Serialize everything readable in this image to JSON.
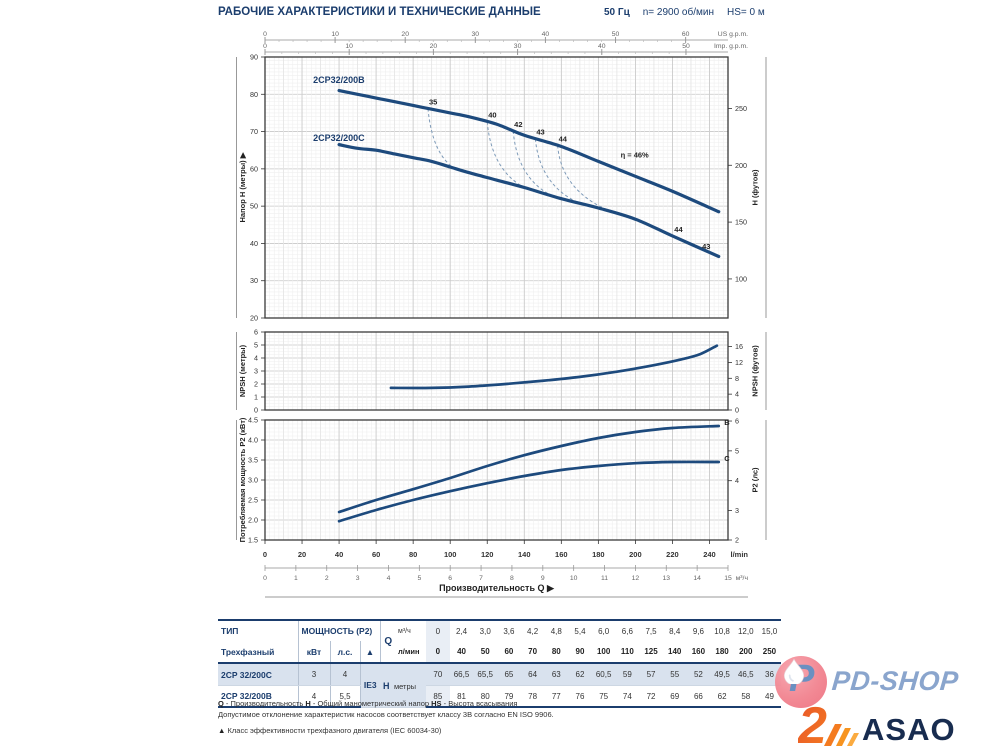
{
  "header": {
    "title": "РАБОЧИЕ ХАРАКТЕРИСТИКИ И ТЕХНИЧЕСКИЕ ДАННЫЕ",
    "frequency": "50 Гц",
    "speed": "n= 2900 об/мин",
    "suction": "HS= 0 м"
  },
  "colors": {
    "navy": "#1b3d6d",
    "curve": "#1d4a7d",
    "grid_minor": "#efefef",
    "grid_mid": "#e2e2e2",
    "grid_major": "#c9c9c9",
    "row_shade": "#d9e2ee"
  },
  "x_axis": {
    "q_max": 250,
    "lmin_ticks": [
      0,
      20,
      40,
      60,
      80,
      100,
      120,
      140,
      160,
      180,
      200,
      220,
      240
    ],
    "lmin_unit": "l/min",
    "m3h_ticks": [
      0,
      1,
      2,
      3,
      4,
      5,
      6,
      7,
      8,
      9,
      10,
      11,
      12,
      13,
      14,
      15
    ],
    "m3h_unit": "м³/ч",
    "us_ticks": [
      0,
      10,
      20,
      30,
      40,
      50,
      60
    ],
    "us_unit": "US g.p.m.",
    "imp_ticks": [
      0,
      10,
      20,
      30,
      40,
      50
    ],
    "imp_unit": "Imp. g.p.m.",
    "q_axis_label": "Производительность Q ▶"
  },
  "chart_data": [
    {
      "id": "head",
      "type": "line",
      "ylabel": "Напор H (метры) ▶",
      "ylabel_right": "H (футов)",
      "ylim": [
        20,
        90
      ],
      "yticks": [
        20,
        30,
        40,
        50,
        60,
        70,
        80,
        90
      ],
      "right_ticks_ft": [
        100,
        150,
        200,
        250
      ],
      "series": [
        {
          "name": "2CP32/200B",
          "points": [
            [
              40,
              81
            ],
            [
              50,
              80
            ],
            [
              60,
              79
            ],
            [
              70,
              78
            ],
            [
              80,
              77
            ],
            [
              90,
              76
            ],
            [
              100,
              75
            ],
            [
              110,
              74
            ],
            [
              125,
              72
            ],
            [
              140,
              69
            ],
            [
              160,
              66
            ],
            [
              180,
              62
            ],
            [
              200,
              58
            ],
            [
              220,
              54
            ],
            [
              245,
              48.5
            ]
          ]
        },
        {
          "name": "2CP32/200C",
          "points": [
            [
              40,
              66.5
            ],
            [
              50,
              65.5
            ],
            [
              60,
              65
            ],
            [
              70,
              64
            ],
            [
              80,
              63
            ],
            [
              90,
              62
            ],
            [
              100,
              60.5
            ],
            [
              110,
              59
            ],
            [
              125,
              57
            ],
            [
              140,
              55
            ],
            [
              160,
              52
            ],
            [
              180,
              49.5
            ],
            [
              200,
              46.5
            ],
            [
              220,
              42
            ],
            [
              245,
              36.5
            ]
          ]
        }
      ],
      "efficiency_lines": [
        {
          "label": "35",
          "q_from": 88,
          "q_to": 102
        },
        {
          "label": "40",
          "q_from": 120,
          "q_to": 140
        },
        {
          "label": "42",
          "q_from": 134,
          "q_to": 155
        },
        {
          "label": "43",
          "q_from": 146,
          "q_to": 170
        },
        {
          "label": "44",
          "q_from": 158,
          "q_to": 190
        }
      ],
      "annotations": [
        {
          "text": "2CP32/200B",
          "q": 26,
          "v": 83,
          "style": "model"
        },
        {
          "text": "2CP32/200C",
          "q": 26,
          "v": 67.5,
          "style": "model"
        },
        {
          "text": "η = 46%",
          "q": 192,
          "v": 63,
          "style": "eff"
        },
        {
          "text": "44",
          "q": 221,
          "v": 43,
          "style": "eff"
        },
        {
          "text": "43",
          "q": 236,
          "v": 38.5,
          "style": "eff"
        }
      ]
    },
    {
      "id": "npsh",
      "type": "line",
      "ylabel": "NPSH (метры)",
      "ylabel_right": "NPSH (футов)",
      "ylim": [
        0,
        6
      ],
      "yticks": [
        0,
        1,
        2,
        3,
        4,
        5,
        6
      ],
      "right_ticks_ft": [
        0,
        4,
        8,
        12,
        16
      ],
      "series": [
        {
          "name": "NPSH",
          "points": [
            [
              68,
              1.7
            ],
            [
              90,
              1.7
            ],
            [
              110,
              1.8
            ],
            [
              130,
              2.0
            ],
            [
              150,
              2.25
            ],
            [
              170,
              2.55
            ],
            [
              190,
              2.95
            ],
            [
              210,
              3.45
            ],
            [
              225,
              3.9
            ],
            [
              235,
              4.3
            ],
            [
              244,
              4.95
            ]
          ]
        }
      ],
      "annotations": []
    },
    {
      "id": "p2",
      "type": "line",
      "ylabel": "Потребляемая мощность P2 (кВт)",
      "ylabel_right": "P2 (лс)",
      "ylim": [
        1.5,
        4.5
      ],
      "yticks": [
        1.5,
        2.0,
        2.5,
        3.0,
        3.5,
        4.0,
        4.5
      ],
      "tick_decimals": 1,
      "right_ticks_hp": [
        2,
        3,
        4,
        5,
        6
      ],
      "series": [
        {
          "name": "B",
          "points": [
            [
              40,
              2.2
            ],
            [
              60,
              2.5
            ],
            [
              80,
              2.77
            ],
            [
              100,
              3.05
            ],
            [
              120,
              3.35
            ],
            [
              140,
              3.62
            ],
            [
              160,
              3.85
            ],
            [
              180,
              4.05
            ],
            [
              200,
              4.2
            ],
            [
              220,
              4.3
            ],
            [
              245,
              4.35
            ]
          ]
        },
        {
          "name": "C",
          "points": [
            [
              40,
              1.97
            ],
            [
              60,
              2.25
            ],
            [
              80,
              2.5
            ],
            [
              100,
              2.72
            ],
            [
              120,
              2.92
            ],
            [
              140,
              3.1
            ],
            [
              160,
              3.25
            ],
            [
              180,
              3.35
            ],
            [
              200,
              3.42
            ],
            [
              220,
              3.45
            ],
            [
              245,
              3.45
            ]
          ]
        }
      ],
      "annotations": [
        {
          "text": "B",
          "q": 248,
          "v": 4.38,
          "style": "eff"
        },
        {
          "text": "C",
          "q": 248,
          "v": 3.48,
          "style": "eff"
        }
      ]
    }
  ],
  "table": {
    "headers": {
      "type": "ТИП",
      "phase": "Трехфазный",
      "power": "МОЩНОСТЬ (P2)",
      "kw": "кВт",
      "hp": "л.с.",
      "tri": "▲",
      "q": "Q",
      "m3h": "м³/ч",
      "lmin": "л/мин",
      "h": "H",
      "meters": "метры"
    },
    "ie": "IE3",
    "m3h": [
      "0",
      "2,4",
      "3,0",
      "3,6",
      "4,2",
      "4,8",
      "5,4",
      "6,0",
      "6,6",
      "7,5",
      "8,4",
      "9,6",
      "10,8",
      "12,0",
      "15,0"
    ],
    "lmin": [
      "0",
      "40",
      "50",
      "60",
      "70",
      "80",
      "90",
      "100",
      "110",
      "125",
      "140",
      "160",
      "180",
      "200",
      "250"
    ],
    "rows": [
      {
        "model": "2CP 32/200C",
        "kw": "3",
        "hp": "4",
        "h": [
          "70",
          "66,5",
          "65,5",
          "65",
          "64",
          "63",
          "62",
          "60,5",
          "59",
          "57",
          "55",
          "52",
          "49,5",
          "46,5",
          "36"
        ]
      },
      {
        "model": "2CP 32/200B",
        "kw": "4",
        "hp": "5,5",
        "h": [
          "85",
          "81",
          "80",
          "79",
          "78",
          "77",
          "76",
          "75",
          "74",
          "72",
          "69",
          "66",
          "62",
          "58",
          "49"
        ]
      }
    ]
  },
  "notes": {
    "q_b": "Q",
    "q_t": " - Производительность   ",
    "h_b": "H",
    "h_t": " - Общий манометрический напор   ",
    "hs_b": "HS",
    "hs_t": " - Высота всасывания",
    "tolerance": "Допустимое отклонение характеристик насосов соответствует классу 3В согласно EN ISO 9906.",
    "motor_mark": "▲",
    "motor": "Класс эффективности трехфазного двигателя (IEC 60034-30)"
  },
  "logos": {
    "pdshop": "PD-SHOP",
    "pdshop_p": "P",
    "asao": "ASAO",
    "asao_2": "2"
  }
}
